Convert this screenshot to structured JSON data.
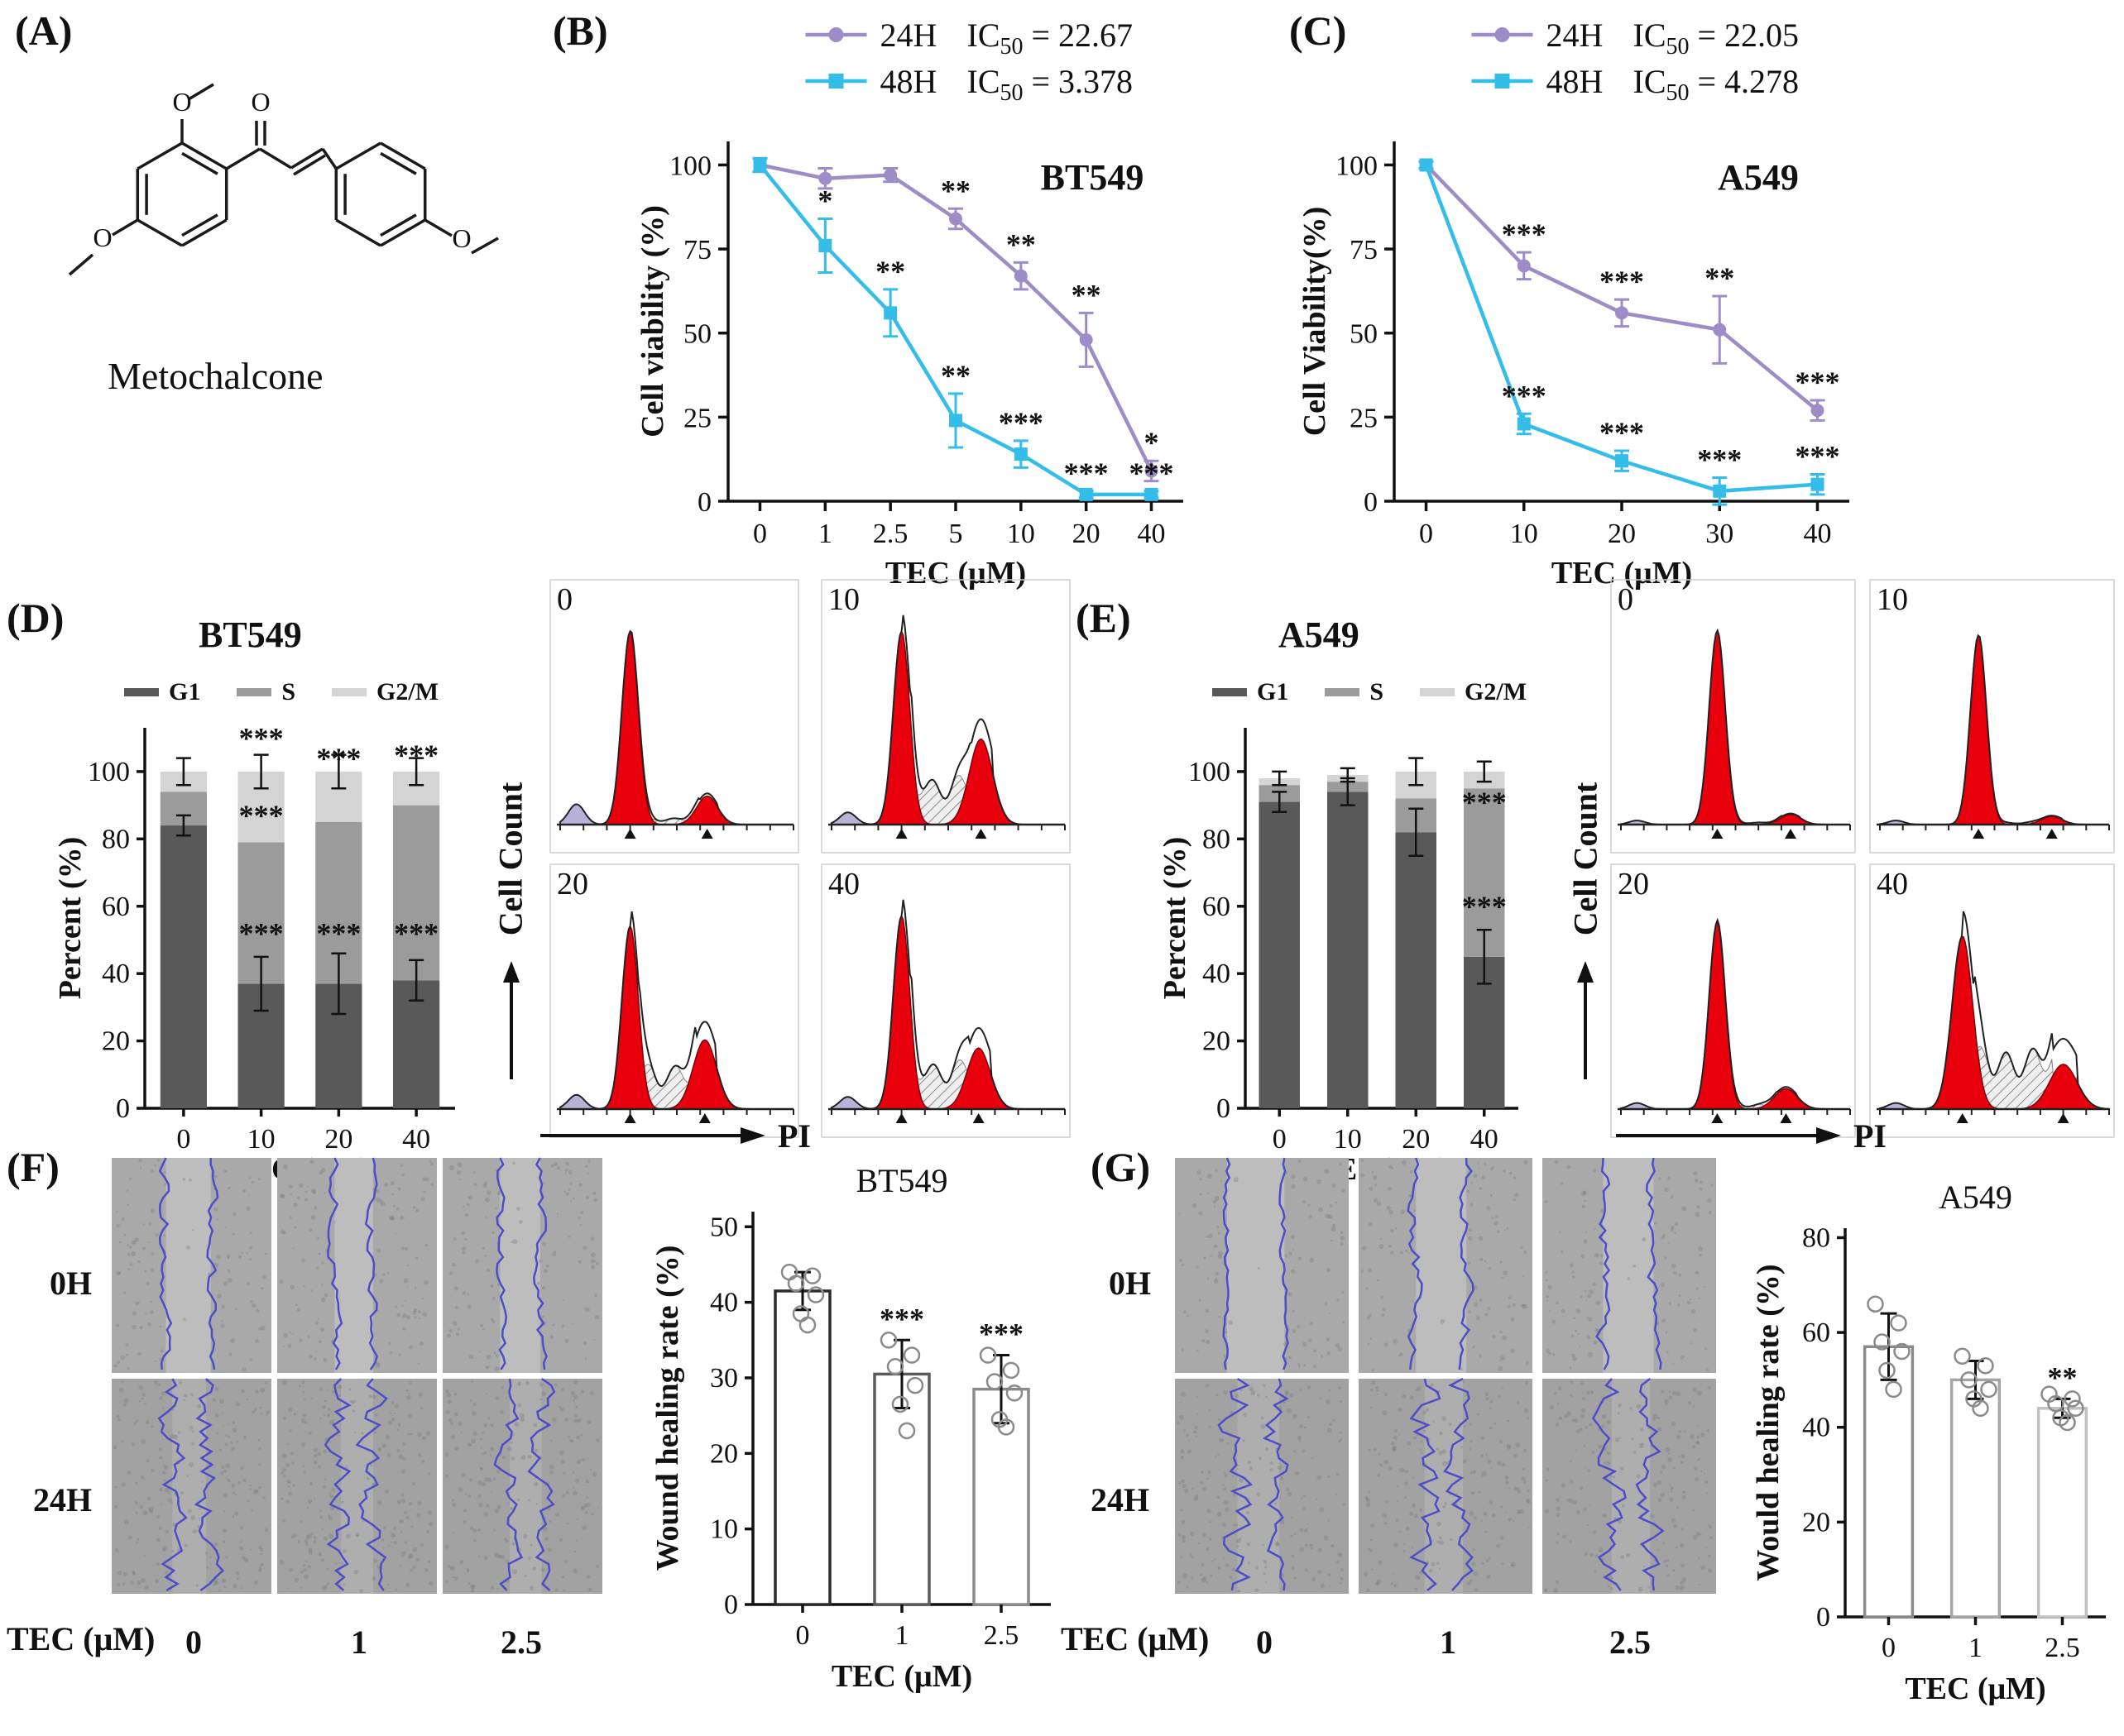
{
  "panels": {
    "A": {
      "label": "(A)",
      "compound": "Metochalcone",
      "o_label": "O"
    },
    "B": {
      "label": "(B)"
    },
    "C": {
      "label": "(C)"
    },
    "D": {
      "label": "(D)",
      "title": "BT549",
      "legend": [
        "G1",
        "S",
        "G2/M"
      ],
      "flow": {
        "ylabel": "Cell Count",
        "xlabel": "PI"
      }
    },
    "E": {
      "label": "(E)",
      "title": "A549",
      "legend": [
        "G1",
        "S",
        "G2/M"
      ],
      "flow": {
        "ylabel": "Cell Count",
        "xlabel": "PI"
      }
    },
    "F": {
      "label": "(F)",
      "row_labels": [
        "0H",
        "24H"
      ],
      "dose_label": "TEC (μM)",
      "dose_values": [
        "0",
        "1",
        "2.5"
      ],
      "images": {
        "rows": [
          {
            "cells": [
              {
                "l": 0.34,
                "r": 0.62,
                "amp": 6
              },
              {
                "l": 0.36,
                "r": 0.6,
                "amp": 6
              },
              {
                "l": 0.36,
                "r": 0.61,
                "amp": 6
              }
            ]
          },
          {
            "cells": [
              {
                "l": 0.38,
                "r": 0.59,
                "amp": 15
              },
              {
                "l": 0.4,
                "r": 0.6,
                "amp": 15
              },
              {
                "l": 0.42,
                "r": 0.62,
                "amp": 13
              }
            ]
          }
        ]
      }
    },
    "G": {
      "label": "(G)",
      "row_labels": [
        "0H",
        "24H"
      ],
      "dose_label": "TEC (μM)",
      "dose_values": [
        "0",
        "1",
        "2.5"
      ],
      "images": {
        "rows": [
          {
            "cells": [
              {
                "l": 0.3,
                "r": 0.63,
                "amp": 4
              },
              {
                "l": 0.33,
                "r": 0.62,
                "amp": 7
              },
              {
                "l": 0.35,
                "r": 0.64,
                "amp": 7
              }
            ]
          },
          {
            "cells": [
              {
                "l": 0.36,
                "r": 0.6,
                "amp": 17
              },
              {
                "l": 0.38,
                "r": 0.6,
                "amp": 17
              },
              {
                "l": 0.4,
                "r": 0.62,
                "amp": 15
              }
            ]
          }
        ]
      }
    }
  },
  "colors": {
    "purple_24h": "#9e8cc6",
    "cyan_48h": "#35bde9",
    "g1": "#595959",
    "s": "#9b9b9b",
    "g2m": "#d4d4d4",
    "peak_red": "#e8000d",
    "wound_edge": "#4d4dc9"
  },
  "chart_data": [
    {
      "id": "viability_bt549",
      "type": "line",
      "title": "BT549",
      "xlabel": "TEC (μM)",
      "ylabel": "Cell viability (%)",
      "x_ticklabels": [
        "0",
        "1",
        "2.5",
        "5",
        "10",
        "20",
        "40"
      ],
      "yticks": [
        0,
        25,
        50,
        75,
        100
      ],
      "ylim": [
        0,
        107
      ],
      "legend": [
        {
          "name": "24H",
          "ic": "IC",
          "sub": "50",
          "eq": "= 22.67"
        },
        {
          "name": "48H",
          "ic": "IC",
          "sub": "50",
          "eq": "= 3.378"
        }
      ],
      "series": [
        {
          "name": "24H",
          "color": "#9e8cc6",
          "marker": "circle",
          "values": [
            100,
            96,
            97,
            84,
            67,
            48,
            9
          ],
          "err": [
            2,
            3,
            2,
            3,
            4,
            8,
            3
          ],
          "sig": [
            "",
            "",
            "",
            "**",
            "**",
            "**",
            "*"
          ]
        },
        {
          "name": "48H",
          "color": "#35bde9",
          "marker": "square",
          "values": [
            100,
            76,
            56,
            24,
            14,
            2,
            2
          ],
          "err": [
            2,
            8,
            7,
            8,
            4,
            1,
            1
          ],
          "sig": [
            "",
            "*",
            "**",
            "**",
            "***",
            "***",
            "***"
          ]
        }
      ]
    },
    {
      "id": "viability_a549",
      "type": "line",
      "title": "A549",
      "xlabel": "TEC (μM)",
      "ylabel": "Cell Viability(%)",
      "x_ticklabels": [
        "0",
        "10",
        "20",
        "30",
        "40"
      ],
      "yticks": [
        0,
        25,
        50,
        75,
        100
      ],
      "ylim": [
        0,
        107
      ],
      "legend": [
        {
          "name": "24H",
          "ic": "IC",
          "sub": "50",
          "eq": "= 22.05"
        },
        {
          "name": "48H",
          "ic": "IC",
          "sub": "50",
          "eq": "= 4.278"
        }
      ],
      "series": [
        {
          "name": "24H",
          "color": "#9e8cc6",
          "marker": "circle",
          "values": [
            100,
            70,
            56,
            51,
            27
          ],
          "err": [
            1,
            4,
            4,
            10,
            3
          ],
          "sig": [
            "",
            "***",
            "***",
            "**",
            "***"
          ]
        },
        {
          "name": "48H",
          "color": "#35bde9",
          "marker": "square",
          "values": [
            100,
            23,
            12,
            3,
            5
          ],
          "err": [
            1,
            3,
            3,
            4,
            3
          ],
          "sig": [
            "",
            "***",
            "***",
            "***",
            "***"
          ]
        }
      ]
    },
    {
      "id": "cycle_bt549",
      "type": "bar",
      "subtype": "stacked",
      "title": "BT549",
      "xlabel": "TEC (μM)",
      "ylabel": "Percent (%)",
      "categories": [
        "0",
        "10",
        "20",
        "40"
      ],
      "yticks": [
        0,
        20,
        40,
        60,
        80,
        100
      ],
      "ylim": [
        0,
        113
      ],
      "series": [
        {
          "name": "G1",
          "color": "#595959",
          "values": [
            84,
            37,
            37,
            38
          ],
          "err": [
            3,
            8,
            9,
            6
          ]
        },
        {
          "name": "S",
          "color": "#9b9b9b",
          "values": [
            10,
            42,
            48,
            52
          ],
          "err": [
            0,
            0,
            0,
            0
          ]
        },
        {
          "name": "G2/M",
          "color": "#d4d4d4",
          "values": [
            6,
            21,
            15,
            10
          ],
          "err": [
            4,
            5,
            5,
            4
          ]
        }
      ],
      "sig": [
        {
          "cat": 1,
          "y": 107,
          "text": "***"
        },
        {
          "cat": 1,
          "y": 84,
          "text": "***"
        },
        {
          "cat": 1,
          "y": 49,
          "text": "***"
        },
        {
          "cat": 2,
          "y": 101,
          "text": "***"
        },
        {
          "cat": 2,
          "y": 49,
          "text": "***"
        },
        {
          "cat": 3,
          "y": 102,
          "text": "***"
        },
        {
          "cat": 3,
          "y": 49,
          "text": "***"
        }
      ]
    },
    {
      "id": "cycle_a549",
      "type": "bar",
      "subtype": "stacked",
      "title": "A549",
      "xlabel": "TEC(μM)",
      "ylabel": "Percent (%)",
      "categories": [
        "0",
        "10",
        "20",
        "40"
      ],
      "yticks": [
        0,
        20,
        40,
        60,
        80,
        100
      ],
      "ylim": [
        0,
        113
      ],
      "series": [
        {
          "name": "G1",
          "color": "#595959",
          "values": [
            91,
            94,
            82,
            45
          ],
          "err": [
            3,
            4,
            7,
            8
          ]
        },
        {
          "name": "S",
          "color": "#9b9b9b",
          "values": [
            5,
            3,
            10,
            50
          ],
          "err": [
            0,
            0,
            0,
            0
          ]
        },
        {
          "name": "G2/M",
          "color": "#d4d4d4",
          "values": [
            2,
            2,
            8,
            5
          ],
          "err": [
            2,
            2,
            4,
            3
          ]
        }
      ],
      "sig": [
        {
          "cat": 3,
          "y": 88,
          "text": "***"
        },
        {
          "cat": 3,
          "y": 57,
          "text": "***"
        }
      ]
    },
    {
      "id": "flow_bt549",
      "type": "heatmap",
      "subtype": "flow-histograms",
      "ylabel": "Cell Count",
      "xlabel": "PI",
      "panels": [
        {
          "label": "0",
          "g1": {
            "x": 0.3,
            "h": 0.95,
            "w": 0.035
          },
          "g2": {
            "x": 0.63,
            "h": 0.14,
            "w": 0.045
          },
          "s": 0.03,
          "debris": 0.1
        },
        {
          "label": "10",
          "g1": {
            "x": 0.3,
            "h": 0.95,
            "w": 0.035
          },
          "g2": {
            "x": 0.64,
            "h": 0.42,
            "w": 0.05
          },
          "s": 0.22,
          "debris": 0.06
        },
        {
          "label": "20",
          "g1": {
            "x": 0.3,
            "h": 0.9,
            "w": 0.035
          },
          "g2": {
            "x": 0.62,
            "h": 0.34,
            "w": 0.05
          },
          "s": 0.2,
          "debris": 0.07
        },
        {
          "label": "40",
          "g1": {
            "x": 0.3,
            "h": 0.95,
            "w": 0.035
          },
          "g2": {
            "x": 0.63,
            "h": 0.3,
            "w": 0.05
          },
          "s": 0.22,
          "debris": 0.06
        }
      ]
    },
    {
      "id": "flow_a549",
      "type": "heatmap",
      "subtype": "flow-histograms",
      "ylabel": "Cell Count",
      "xlabel": "PI",
      "panels": [
        {
          "label": "0",
          "g1": {
            "x": 0.42,
            "h": 0.95,
            "w": 0.035
          },
          "g2": {
            "x": 0.74,
            "h": 0.05,
            "w": 0.045
          },
          "s": 0.01,
          "debris": 0.02
        },
        {
          "label": "10",
          "g1": {
            "x": 0.43,
            "h": 0.93,
            "w": 0.035
          },
          "g2": {
            "x": 0.75,
            "h": 0.04,
            "w": 0.045
          },
          "s": 0.01,
          "debris": 0.02
        },
        {
          "label": "20",
          "g1": {
            "x": 0.42,
            "h": 0.92,
            "w": 0.035
          },
          "g2": {
            "x": 0.72,
            "h": 0.1,
            "w": 0.05
          },
          "s": 0.02,
          "debris": 0.03
        },
        {
          "label": "40",
          "g1": {
            "x": 0.36,
            "h": 0.85,
            "w": 0.045
          },
          "g2": {
            "x": 0.8,
            "h": 0.22,
            "w": 0.06
          },
          "s": 0.28,
          "debris": 0.03
        }
      ]
    },
    {
      "id": "wound_bt549",
      "type": "bar",
      "title": "BT549",
      "xlabel": "TEC (μM)",
      "ylabel": "Wound healing rate (%)",
      "categories": [
        "0",
        "1",
        "2.5"
      ],
      "yticks": [
        0,
        10,
        20,
        30,
        40,
        50
      ],
      "ylim": [
        0,
        52
      ],
      "values": [
        41.5,
        30.5,
        28.5
      ],
      "err": [
        2.5,
        4.5,
        4.5
      ],
      "sig": [
        "",
        "***",
        "***"
      ],
      "bar_strokes": [
        "#2b2b2b",
        "#5a5a5a",
        "#8a8a8a"
      ],
      "points": [
        [
          44,
          43.5,
          42.5,
          41,
          38.5,
          37
        ],
        [
          35,
          33,
          31.5,
          29,
          26.5,
          23
        ],
        [
          33,
          31,
          29.5,
          28,
          24.5,
          23.5
        ]
      ]
    },
    {
      "id": "wound_a549",
      "type": "bar",
      "title": "A549",
      "xlabel": "TEC (μM)",
      "ylabel": "Would healing rate (%)",
      "categories": [
        "0",
        "1",
        "2.5"
      ],
      "yticks": [
        0,
        20,
        40,
        60,
        80
      ],
      "ylim": [
        0,
        82
      ],
      "values": [
        57,
        50,
        44
      ],
      "err": [
        7,
        4,
        2
      ],
      "sig": [
        "",
        "",
        "**"
      ],
      "bar_strokes": [
        "#8a8a8a",
        "#a5a5a5",
        "#c0c0c0"
      ],
      "points": [
        [
          66,
          62,
          58,
          56,
          52,
          48
        ],
        [
          55,
          53,
          50,
          48,
          46,
          44
        ],
        [
          47,
          46,
          45,
          44,
          42,
          41
        ]
      ]
    }
  ]
}
